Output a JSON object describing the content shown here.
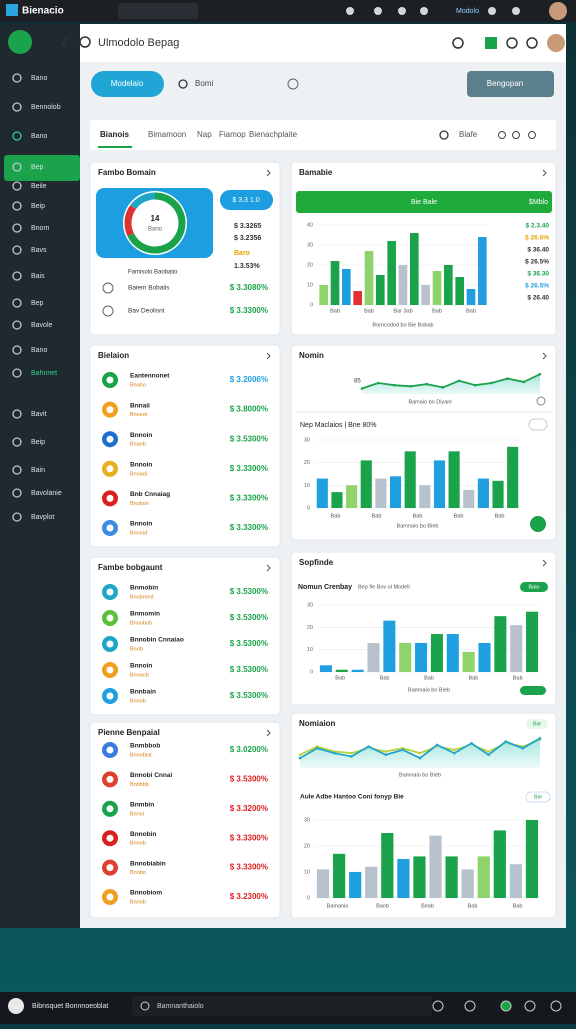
{
  "top_bar": {
    "app_name": "Bienacio",
    "status": "Modolo"
  },
  "header": {
    "title": "Ulmodolo Bepag"
  },
  "sidebar": {
    "items": [
      "Bano",
      "Bennolob",
      "Bano",
      "Bep",
      "Beile",
      "Beip",
      "Bnom",
      "Bavs",
      "Bais",
      "Bep",
      "Bavole",
      "Bano",
      "Bahnnet",
      "Bavit",
      "Beip",
      "Bain",
      "Bavolanie",
      "Bavplot"
    ]
  },
  "toolbar": {
    "primary_button": "Modelaio",
    "search": "Bomi",
    "action_button": "Bengopan"
  },
  "tabs": {
    "items": [
      "Bianois",
      "Bimamoon",
      "Nap",
      "Fiamop",
      "Bienachplaite"
    ],
    "right_label": "Biafe"
  },
  "summary_card": {
    "title": "Fambo Bomain",
    "donut": {
      "center_value": "14",
      "center_label": "Bano",
      "values": [
        68,
        17,
        15
      ],
      "colors": [
        "#1aa34a",
        "#e03131",
        "#1fa5c6"
      ]
    },
    "pill": "$ 3.3 1.0",
    "stats": [
      {
        "text": "$ 3.3265",
        "color": "#333333"
      },
      {
        "text": "$ 3.2356",
        "color": "#333333"
      },
      {
        "text": "Baro",
        "color": "#e8a000"
      },
      {
        "text": "1.3.53%",
        "color": "#333333"
      }
    ],
    "caption": "Famisolo Baobaiio",
    "rows": [
      {
        "name": "Baiem Bobalis",
        "value": "$ 3.3080%"
      },
      {
        "name": "Bav Deolisnt",
        "value": "$ 3.3300%"
      }
    ]
  },
  "list_cards": [
    {
      "title": "Bielaion",
      "items": [
        {
          "name": "Eantennonet",
          "sub": "Bnabo",
          "value": "$ 3.2006%",
          "value_color": "#1f9fe0",
          "icon_color": "#1aa34a"
        },
        {
          "name": "Bnnaii",
          "sub": "Bnoeet",
          "value": "$ 3.8000%",
          "value_color": "#1aa34a",
          "icon_color": "#f0a020"
        },
        {
          "name": "Bnnoin",
          "sub": "Bnaob",
          "value": "$ 3.5300%",
          "value_color": "#1aa34a",
          "icon_color": "#1f6fd0"
        },
        {
          "name": "Bnnoin",
          "sub": "Bnnadi",
          "value": "$ 3.3300%",
          "value_color": "#1aa34a",
          "icon_color": "#e8b020"
        },
        {
          "name": "Bnb Cnnaiag",
          "sub": "Bnobon",
          "value": "$ 3.3300%",
          "value_color": "#1aa34a",
          "icon_color": "#d92020"
        },
        {
          "name": "Bnnoin",
          "sub": "Bnnoid",
          "value": "$ 3.3300%",
          "value_color": "#1aa34a",
          "icon_color": "#3a8de0"
        }
      ]
    },
    {
      "title": "Fambe bobgaunt",
      "items": [
        {
          "name": "Bnmobin",
          "sub": "Bnobmnd",
          "value": "$ 3.5300%",
          "value_color": "#1aa34a",
          "icon_color": "#1fa5c6"
        },
        {
          "name": "Bnmomin",
          "sub": "Bnnobob",
          "value": "$ 3.5300%",
          "value_color": "#1aa34a",
          "icon_color": "#5bbf3a"
        },
        {
          "name": "Bnnobin Cnnaiao",
          "sub": "Bnob",
          "value": "$ 3.5300%",
          "value_color": "#1aa34a",
          "icon_color": "#1fa5c6"
        },
        {
          "name": "Bnnoin",
          "sub": "Bnnaob",
          "value": "$ 3.5300%",
          "value_color": "#1aa34a",
          "icon_color": "#f0a020"
        },
        {
          "name": "Bnnbain",
          "sub": "Bnnob",
          "value": "$ 3.5300%",
          "value_color": "#1aa34a",
          "icon_color": "#1f9fe0"
        }
      ]
    },
    {
      "title": "Pienne Benpaial",
      "items": [
        {
          "name": "Bnmbbob",
          "sub": "Bnnobiat",
          "value": "$ 3.0200%",
          "value_color": "#1aa34a",
          "icon_color": "#3a7de0"
        },
        {
          "name": "Bnnobi Cnnai",
          "sub": "Bnbbbb",
          "value": "$ 3.5300%",
          "value_color": "#d92020",
          "icon_color": "#e04030"
        },
        {
          "name": "Bnmbin",
          "sub": "Bnnoi",
          "value": "$ 3.3200%",
          "value_color": "#d92020",
          "icon_color": "#1aa34a"
        },
        {
          "name": "Bnnobin",
          "sub": "Bnnob",
          "value": "$ 3.3300%",
          "value_color": "#d92020",
          "icon_color": "#d92020"
        },
        {
          "name": "Bnnobiabin",
          "sub": "Bnnbo",
          "value": "$ 3.3300%",
          "value_color": "#d92020",
          "icon_color": "#e04030"
        },
        {
          "name": "Bnnobiom",
          "sub": "Bnnob",
          "value": "$ 3.2300%",
          "value_color": "#d92020",
          "icon_color": "#f0a020"
        }
      ]
    }
  ],
  "chart_cards": [
    {
      "title": "Bamabie",
      "banner": {
        "left": "Bie Bale",
        "right": "$Mblo"
      },
      "chart": {
        "type": "bar",
        "ylim": [
          0,
          40
        ],
        "yticks": [
          0,
          10,
          20,
          30,
          40
        ],
        "values": [
          10,
          22,
          18,
          7,
          27,
          15,
          32,
          20,
          36,
          10,
          17,
          20,
          14,
          8,
          34
        ],
        "colors": [
          "#8fd46a",
          "#1aa34a",
          "#1f9fe0",
          "#e03131",
          "#8fd46a",
          "#1aa34a",
          "#1aa34a",
          "#b8c2cc",
          "#1aa34a",
          "#b8c2cc",
          "#8fd46a",
          "#1aa34a",
          "#1aa34a",
          "#1f9fe0",
          "#1f9fe0"
        ],
        "x_labels": [
          "Bab",
          "Bab",
          "Bar 3ab",
          "Bab",
          "Bab"
        ],
        "x_title": "Borncodod bo Bie Bobab"
      },
      "legend_values": [
        {
          "text": "$ 2.3.40",
          "color": "#1aa34a"
        },
        {
          "text": "$ 26.6%",
          "color": "#e8a000"
        },
        {
          "text": "$ 36.40",
          "color": "#333333"
        },
        {
          "text": "$ 26.5%",
          "color": "#333333"
        },
        {
          "text": "$ 36.30",
          "color": "#1aa34a"
        },
        {
          "text": "$ 26.5%",
          "color": "#1f9fe0"
        },
        {
          "text": "$ 26.40",
          "color": "#333333"
        }
      ]
    },
    {
      "title": "Nomin",
      "line": {
        "type": "line",
        "ylim": [
          0,
          20
        ],
        "values": [
          5,
          10,
          8,
          7,
          9,
          6,
          12,
          8,
          10,
          14,
          11,
          18
        ],
        "color": "#1aa34a",
        "label": "85",
        "x_title": "Bamaio bo Diyanl"
      },
      "subtitle": "Nep Maclaios | Bne 80%",
      "chart": {
        "type": "bar",
        "ylim": [
          0,
          30
        ],
        "yticks": [
          0,
          10,
          20,
          30
        ],
        "values": [
          13,
          7,
          10,
          21,
          13,
          14,
          25,
          10,
          21,
          25,
          8,
          13,
          12,
          27
        ],
        "colors": [
          "#1f9fe0",
          "#1aa34a",
          "#8fd46a",
          "#1aa34a",
          "#b8c2cc",
          "#1f9fe0",
          "#1aa34a",
          "#b8c2cc",
          "#1f9fe0",
          "#1aa34a",
          "#b8c2cc",
          "#1f9fe0",
          "#1aa34a",
          "#1aa34a"
        ],
        "x_labels": [
          "Bab",
          "Bab",
          "Bab",
          "Bab",
          "Bab"
        ],
        "x_title": "Bamnaio bo Bieb"
      }
    },
    {
      "title": "Sopfinde",
      "subtitle": "Nomun Crenbay",
      "note": "Bep fie Bov ol Modeli",
      "pill": "Baio",
      "chart": {
        "type": "bar",
        "ylim": [
          0,
          30
        ],
        "yticks": [
          0,
          10,
          20,
          30
        ],
        "values": [
          3,
          1,
          1,
          13,
          23,
          13,
          13,
          17,
          17,
          9,
          13,
          25,
          21,
          27
        ],
        "colors": [
          "#1f9fe0",
          "#1aa34a",
          "#1f9fe0",
          "#b8c2cc",
          "#1f9fe0",
          "#8fd46a",
          "#1f9fe0",
          "#1aa34a",
          "#1f9fe0",
          "#8fd46a",
          "#1f9fe0",
          "#1aa34a",
          "#b8c2cc",
          "#1aa34a"
        ],
        "x_labels": [
          "Bab",
          "Bab",
          "Bab",
          "Bab",
          "Bab"
        ],
        "x_title": "Bamnaio bo Bieb"
      }
    },
    {
      "title": "Nomiaion",
      "pill": "Bie",
      "line": {
        "type": "line",
        "ylim": [
          0,
          20
        ],
        "values": [
          6,
          12,
          9,
          7,
          13,
          8,
          11,
          6,
          14,
          9,
          15,
          8,
          16,
          12,
          18
        ],
        "color": "#1fa5c6",
        "values2": [
          8,
          13,
          10,
          9,
          12,
          10,
          12,
          9,
          13,
          11,
          14,
          10,
          15,
          13,
          17
        ],
        "color2": "#b8d040",
        "x_title": "Bamnaio bo Bieb"
      },
      "subtitle": "Aule Adbe Hantoo Coni fonyp Bie",
      "pill2": "Bie",
      "chart": {
        "type": "bar",
        "ylim": [
          0,
          30
        ],
        "yticks": [
          0,
          10,
          20,
          30
        ],
        "values": [
          11,
          17,
          10,
          12,
          25,
          15,
          16,
          24,
          16,
          11,
          16,
          26,
          13,
          30
        ],
        "colors": [
          "#b8c2cc",
          "#1aa34a",
          "#1f9fe0",
          "#b8c2cc",
          "#1aa34a",
          "#1f9fe0",
          "#1aa34a",
          "#b8c2cc",
          "#1aa34a",
          "#b8c2cc",
          "#8fd46a",
          "#1aa34a",
          "#b8c2cc",
          "#1aa34a"
        ],
        "x_labels": [
          "Bamanio",
          "Baob",
          "Beab",
          "Bab",
          "Bab"
        ],
        "x_title": ""
      }
    }
  ],
  "taskbar": {
    "user": "Bibnsquet Bonnnoeoblat",
    "search": "Bamnanthaiolo"
  }
}
